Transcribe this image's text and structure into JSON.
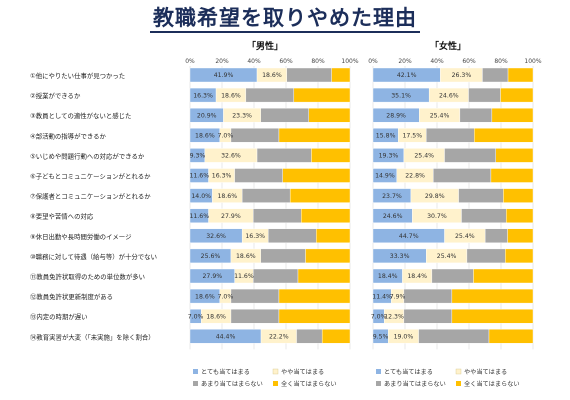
{
  "title": "教職希望を取りやめた理由",
  "chart_data": [
    {
      "type": "bar",
      "stacked": true,
      "orientation": "horizontal",
      "title": "「男性」",
      "categories": [
        "①他にやりたい仕事が見つかった",
        "②授業ができるか",
        "③教員としての適性がないと感じた",
        "④部活動の指導ができるか",
        "⑤いじめや問題行動への対応ができるか",
        "⑥子どもとコミュニケーションがとれるか",
        "⑦保護者とコミュニケーションがとれるか",
        "⑧要望や苦情への対応",
        "⑨休日出勤や長時間労働のイメージ",
        "⑩職務に対して待遇（給与等）が十分でない",
        "⑪教員免許状取得のための単位数が多い",
        "⑫教員免許状更新制度がある",
        "⑬内定の時期が遅い",
        "⑭教育実習が大変（「未実施」を除く割合）"
      ],
      "xticks": [
        "0%",
        "20%",
        "40%",
        "60%",
        "80%",
        "100%"
      ],
      "xlim": [
        0,
        100
      ],
      "grid": true,
      "series": [
        {
          "name": "とても当てはまる",
          "color": "#8eb4e3",
          "values": [
            41.9,
            16.3,
            20.9,
            18.6,
            9.3,
            11.6,
            14.0,
            11.6,
            32.6,
            25.6,
            27.9,
            18.6,
            7.0,
            44.4
          ]
        },
        {
          "name": "やや当てはまる",
          "color": "#fff2cc",
          "values": [
            18.6,
            18.6,
            23.3,
            7.0,
            32.6,
            16.3,
            18.6,
            27.9,
            16.3,
            18.6,
            11.6,
            7.0,
            18.6,
            22.2
          ]
        },
        {
          "name": "あまり当てはまらない",
          "color": "#a6a6a6",
          "values": [
            28.0,
            30.0,
            30.0,
            30.0,
            34.0,
            30.0,
            30.0,
            30.0,
            30.0,
            28.0,
            28.0,
            30.0,
            30.0,
            16.0
          ]
        },
        {
          "name": "全く当てはまらない",
          "color": "#ffc000",
          "values": [
            11.5,
            35.1,
            25.8,
            44.4,
            24.1,
            42.1,
            37.4,
            30.5,
            21.1,
            27.8,
            32.5,
            44.4,
            44.4,
            17.4
          ]
        }
      ],
      "data_labels": [
        [
          "41.9%",
          "18.6%"
        ],
        [
          "16.3%",
          "18.6%"
        ],
        [
          "20.9%",
          "23.3%"
        ],
        [
          "18.6%",
          "7.0%"
        ],
        [
          "9.3%",
          "32.6%"
        ],
        [
          "11.6%",
          "16.3%"
        ],
        [
          "14.0%",
          "18.6%"
        ],
        [
          "11.6%",
          "27.9%"
        ],
        [
          "32.6%",
          "16.3%"
        ],
        [
          "25.6%",
          "18.6%"
        ],
        [
          "27.9%",
          "11.6%"
        ],
        [
          "18.6%",
          "7.0%"
        ],
        [
          "7.0%",
          "18.6%"
        ],
        [
          "44.4%",
          "22.2%"
        ]
      ]
    },
    {
      "type": "bar",
      "stacked": true,
      "orientation": "horizontal",
      "title": "「女性」",
      "xticks": [
        "0%",
        "20%",
        "40%",
        "60%",
        "80%",
        "100%"
      ],
      "xlim": [
        0,
        100
      ],
      "grid": true,
      "series": [
        {
          "name": "とても当てはまる",
          "color": "#8eb4e3",
          "values": [
            42.1,
            35.1,
            28.9,
            15.8,
            19.3,
            14.9,
            23.7,
            24.6,
            44.7,
            33.3,
            18.4,
            11.4,
            7.0,
            9.5
          ]
        },
        {
          "name": "やや当てはまる",
          "color": "#fff2cc",
          "values": [
            26.3,
            24.6,
            25.4,
            17.5,
            25.4,
            22.8,
            29.8,
            30.7,
            25.4,
            25.4,
            18.4,
            7.9,
            12.3,
            19.0
          ]
        },
        {
          "name": "あまり当てはまらない",
          "color": "#a6a6a6",
          "values": [
            16.0,
            20.0,
            20.0,
            30.0,
            32.0,
            36.0,
            28.0,
            28.0,
            14.0,
            24.0,
            26.0,
            30.0,
            30.0,
            44.0
          ]
        },
        {
          "name": "全く当てはまらない",
          "color": "#ffc000",
          "values": [
            15.6,
            20.3,
            25.7,
            36.7,
            23.3,
            26.3,
            18.5,
            16.7,
            15.9,
            17.3,
            37.2,
            50.7,
            50.7,
            27.5
          ]
        }
      ],
      "data_labels": [
        [
          "42.1%",
          "26.3%"
        ],
        [
          "35.1%",
          "24.6%"
        ],
        [
          "28.9%",
          "25.4%"
        ],
        [
          "15.8%",
          "17.5%"
        ],
        [
          "19.3%",
          "25.4%"
        ],
        [
          "14.9%",
          "22.8%"
        ],
        [
          "23.7%",
          "29.8%"
        ],
        [
          "24.6%",
          "30.7%"
        ],
        [
          "44.7%",
          "25.4%"
        ],
        [
          "33.3%",
          "25.4%"
        ],
        [
          "18.4%",
          "18.4%"
        ],
        [
          "11.4%",
          "7.9%"
        ],
        [
          "7.0%",
          "12.3%"
        ],
        [
          "9.5%",
          "19.0%"
        ]
      ]
    }
  ]
}
